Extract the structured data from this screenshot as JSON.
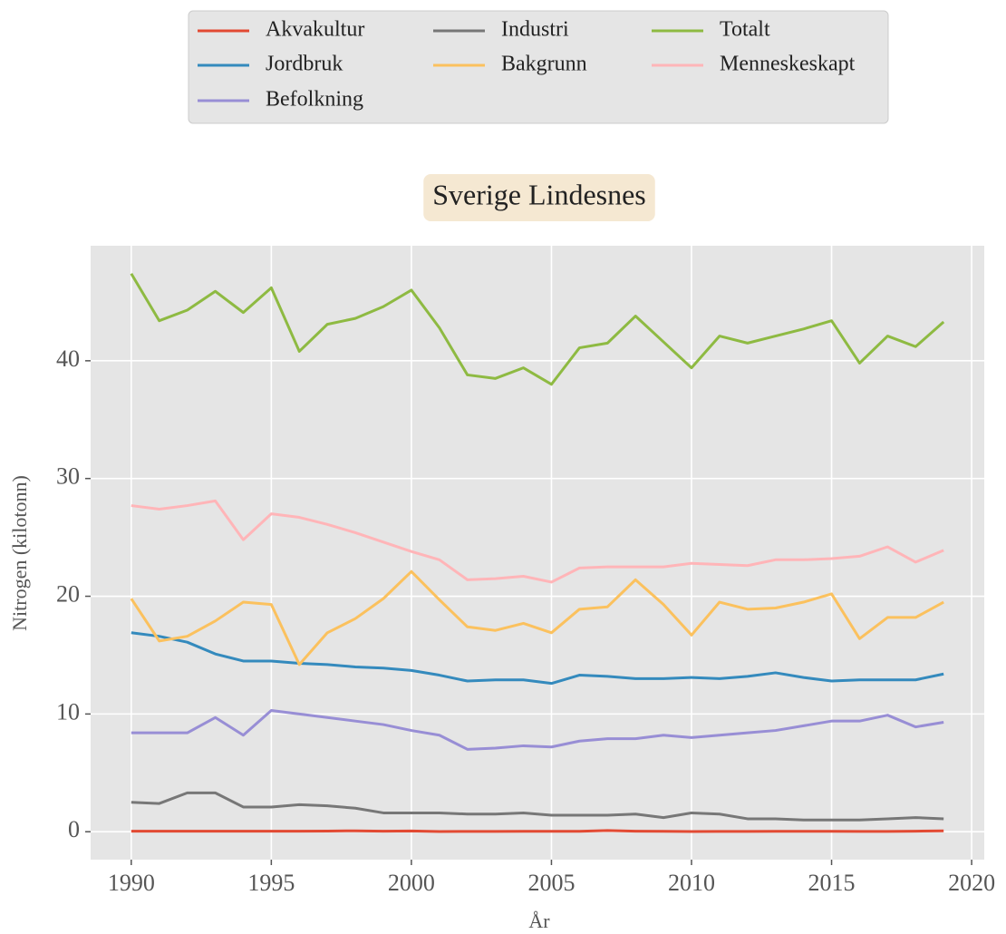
{
  "chart_data": {
    "type": "line",
    "title": "Sverige Lindesnes",
    "xlabel": "År",
    "ylabel": "Nitrogen (kilotonn)",
    "x": [
      1990,
      1991,
      1992,
      1993,
      1994,
      1995,
      1996,
      1997,
      1998,
      1999,
      2000,
      2001,
      2002,
      2003,
      2004,
      2005,
      2006,
      2007,
      2008,
      2009,
      2010,
      2011,
      2012,
      2013,
      2014,
      2015,
      2016,
      2017,
      2018,
      2019
    ],
    "series": [
      {
        "name": "Akvakultur",
        "color": "#E24A33",
        "values": [
          0.05,
          0.05,
          0.05,
          0.05,
          0.05,
          0.05,
          0.05,
          0.06,
          0.08,
          0.05,
          0.07,
          0.02,
          0.03,
          0.03,
          0.04,
          0.04,
          0.04,
          0.1,
          0.05,
          0.04,
          0.02,
          0.03,
          0.03,
          0.04,
          0.04,
          0.04,
          0.03,
          0.03,
          0.05,
          0.08
        ]
      },
      {
        "name": "Jordbruk",
        "color": "#348ABD",
        "values": [
          16.9,
          16.6,
          16.1,
          15.1,
          14.5,
          14.5,
          14.3,
          14.2,
          14.0,
          13.9,
          13.7,
          13.3,
          12.8,
          12.9,
          12.9,
          12.6,
          13.3,
          13.2,
          13.0,
          13.0,
          13.1,
          13.0,
          13.2,
          13.5,
          13.1,
          12.8,
          12.9,
          12.9,
          12.9,
          13.4
        ]
      },
      {
        "name": "Befolkning",
        "color": "#988ED5",
        "values": [
          8.4,
          8.4,
          8.4,
          9.7,
          8.2,
          10.3,
          10.0,
          9.7,
          9.4,
          9.1,
          8.6,
          8.2,
          7.0,
          7.1,
          7.3,
          7.2,
          7.7,
          7.9,
          7.9,
          8.2,
          8.0,
          8.2,
          8.4,
          8.6,
          9.0,
          9.4,
          9.4,
          9.9,
          8.9,
          9.3
        ]
      },
      {
        "name": "Industri",
        "color": "#777777",
        "values": [
          2.5,
          2.4,
          3.3,
          3.3,
          2.1,
          2.1,
          2.3,
          2.2,
          2.0,
          1.6,
          1.6,
          1.6,
          1.5,
          1.5,
          1.6,
          1.4,
          1.4,
          1.4,
          1.5,
          1.2,
          1.6,
          1.5,
          1.1,
          1.1,
          1.0,
          1.0,
          1.0,
          1.1,
          1.2,
          1.1
        ]
      },
      {
        "name": "Bakgrunn",
        "color": "#FBC15E",
        "values": [
          19.8,
          16.2,
          16.6,
          17.9,
          19.5,
          19.3,
          14.2,
          16.9,
          18.1,
          19.8,
          22.1,
          19.7,
          17.4,
          17.1,
          17.7,
          16.9,
          18.9,
          19.1,
          21.4,
          19.3,
          16.7,
          19.5,
          18.9,
          19.0,
          19.5,
          20.2,
          16.4,
          18.2,
          18.2,
          19.5
        ]
      },
      {
        "name": "Totalt",
        "color": "#8EBA42",
        "values": [
          47.4,
          43.4,
          44.3,
          45.9,
          44.1,
          46.2,
          40.8,
          43.1,
          43.6,
          44.6,
          46.0,
          42.8,
          38.8,
          38.5,
          39.4,
          38.0,
          41.1,
          41.5,
          43.8,
          41.6,
          39.4,
          42.1,
          41.5,
          42.1,
          42.7,
          43.4,
          39.8,
          42.1,
          41.2,
          43.3
        ]
      },
      {
        "name": "Menneskeskapt",
        "color": "#FFB5B8",
        "values": [
          27.7,
          27.4,
          27.7,
          28.1,
          24.8,
          27.0,
          26.7,
          26.1,
          25.4,
          24.6,
          23.8,
          23.1,
          21.4,
          21.5,
          21.7,
          21.2,
          22.4,
          22.5,
          22.5,
          22.5,
          22.8,
          22.7,
          22.6,
          23.1,
          23.1,
          23.2,
          23.4,
          24.2,
          22.9,
          23.9
        ]
      }
    ],
    "xlim": [
      1988.55,
      2020.45
    ],
    "xticks": [
      1990,
      1995,
      2000,
      2005,
      2010,
      2015,
      2020
    ],
    "ylim": [
      -2.37,
      49.77
    ],
    "yticks": [
      0,
      10,
      20,
      30,
      40
    ],
    "grid": true,
    "legend": "top"
  }
}
